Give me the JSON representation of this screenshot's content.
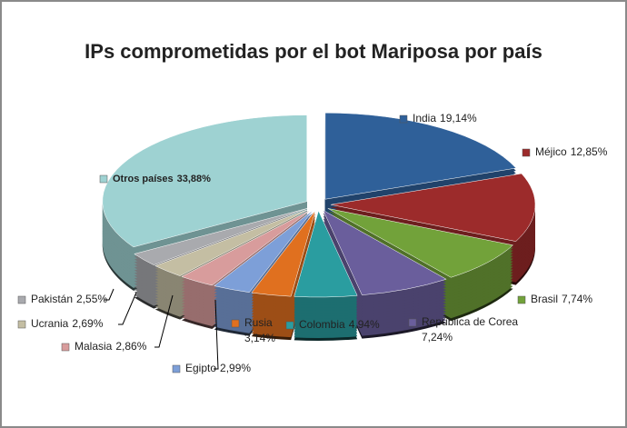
{
  "chart_data": {
    "type": "pie",
    "title": "IPs comprometidas por el bot Mariposa por país",
    "categories": [
      "India",
      "Méjico",
      "Brasil",
      "República de Corea",
      "Colombia",
      "Rusia",
      "Egipto",
      "Malasia",
      "Ucrania",
      "Pakistán",
      "Otros países"
    ],
    "values": [
      19.14,
      12.85,
      7.74,
      7.24,
      4.94,
      3.14,
      2.99,
      2.86,
      2.69,
      2.55,
      33.88
    ],
    "value_labels": [
      "19,14%",
      "12,85%",
      "7,74%",
      "7,24%",
      "4,94%",
      "3,14%",
      "2,99%",
      "2,86%",
      "2,69%",
      "2,55%",
      "33,88%"
    ],
    "colors": [
      "#2f6099",
      "#9c2b2b",
      "#72a23a",
      "#6a5e9c",
      "#2a9da0",
      "#e0701f",
      "#7d9fd8",
      "#d89c9c",
      "#c4bea3",
      "#a9aaae",
      "#9ed2d2"
    ]
  }
}
